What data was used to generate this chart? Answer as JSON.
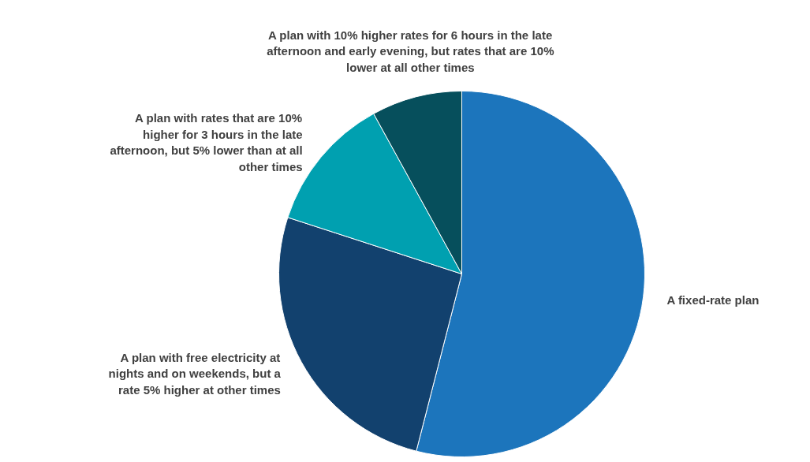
{
  "chart_data": {
    "type": "pie",
    "categories": [
      "A fixed-rate plan",
      "A plan with free electricity at\nnights and on weekends, but a\nrate 5% higher at other times",
      "A plan with rates that are 10%\nhigher for 3 hours in the late\nafternoon, but 5% lower than at all\nother times",
      "A plan with 10% higher rates for 6 hours in the late\nafternoon and early evening, but rates that are 10%\nlower at all other times"
    ],
    "values": [
      54,
      26,
      12,
      8
    ],
    "colors": [
      "#1c75bc",
      "#12416e",
      "#00a0b0",
      "#064f5c"
    ]
  }
}
